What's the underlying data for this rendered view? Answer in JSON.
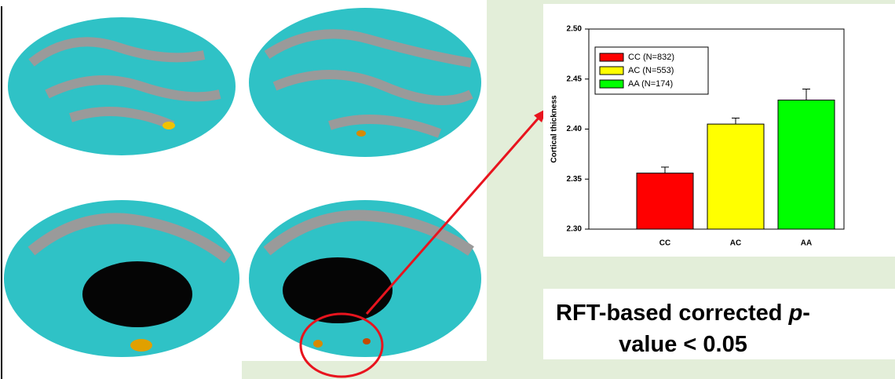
{
  "chart_data": {
    "type": "bar",
    "y_label": "Cortical thickness",
    "categories": [
      "CC",
      "AC",
      "AA"
    ],
    "values": [
      2.356,
      2.405,
      2.429
    ],
    "errors": [
      0.006,
      0.006,
      0.011
    ],
    "colors": [
      "#ff0000",
      "#ffff00",
      "#00ff00"
    ],
    "legend": [
      "CC (N=832)",
      "AC (N=553)",
      "AA (N=174)"
    ],
    "ylim": [
      2.3,
      2.5
    ],
    "yticks": [
      {
        "value": 2.3,
        "label": "2.30"
      },
      {
        "value": 2.35,
        "label": "2.35"
      },
      {
        "value": 2.4,
        "label": "2.40"
      },
      {
        "value": 2.45,
        "label": "2.45"
      },
      {
        "value": 2.5,
        "label": "2.50"
      }
    ],
    "annotation": [
      "RFT-based corrected",
      "p",
      "-",
      "value < 0.05"
    ]
  }
}
